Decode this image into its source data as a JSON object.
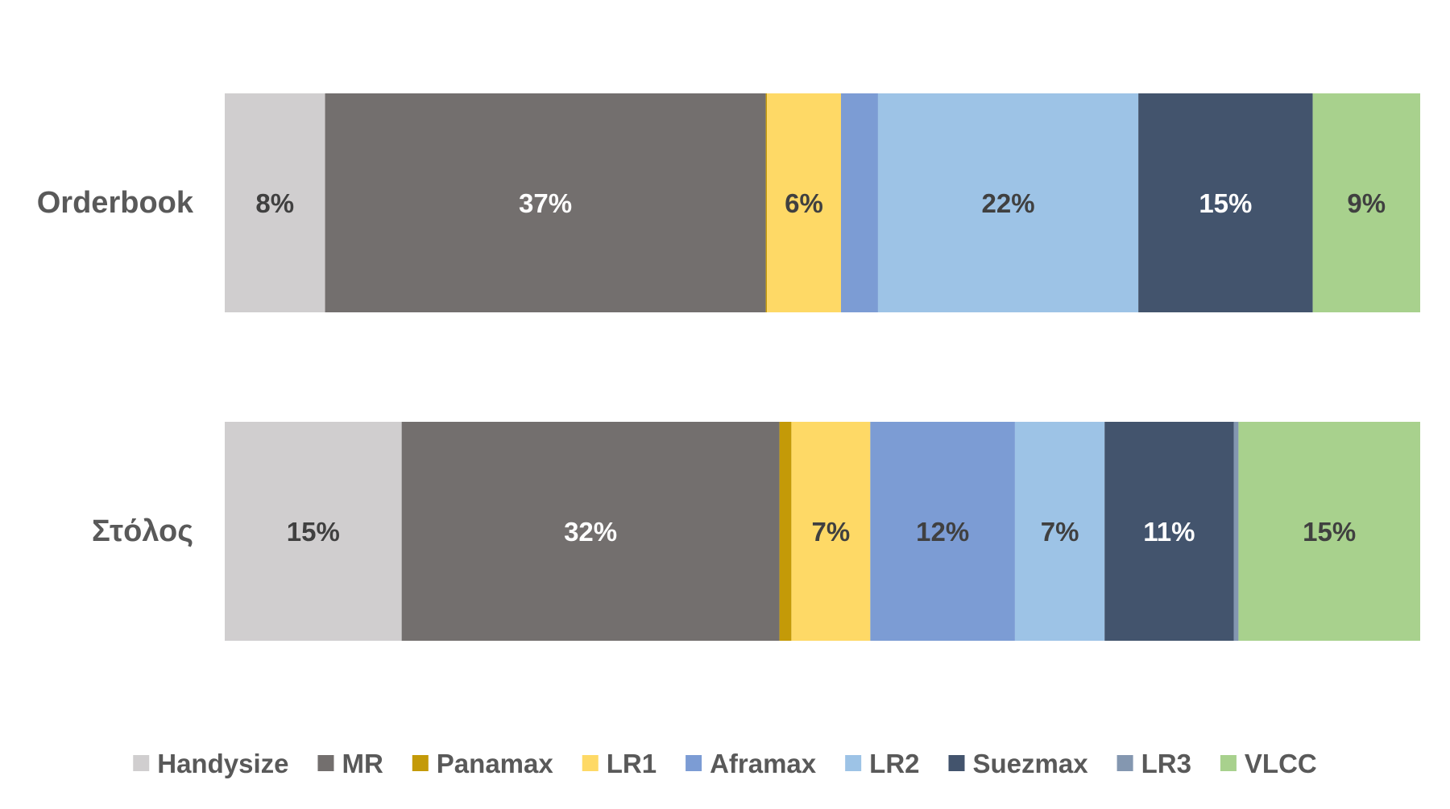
{
  "chart_data": {
    "type": "bar",
    "orientation": "horizontal",
    "stacked": "percent",
    "title": "",
    "xlabel": "",
    "ylabel": "",
    "categories": [
      "Orderbook",
      "Στόλος"
    ],
    "legend_position": "bottom",
    "grid": false,
    "series": [
      {
        "name": "Handysize",
        "color": "#D0CECF",
        "values": [
          8.4,
          14.8
        ],
        "labels": [
          "8%",
          "15%"
        ],
        "label_color": "#404040"
      },
      {
        "name": "MR",
        "color": "#736F6E",
        "values": [
          36.9,
          31.6
        ],
        "labels": [
          "37%",
          "32%"
        ],
        "label_color": "#FFFFFF"
      },
      {
        "name": "Panamax",
        "color": "#C49A08",
        "values": [
          0.1,
          1.0
        ],
        "labels": [
          "",
          ""
        ],
        "label_color": "#404040"
      },
      {
        "name": "LR1",
        "color": "#FED966",
        "values": [
          6.2,
          6.6
        ],
        "labels": [
          "6%",
          "7%"
        ],
        "label_color": "#404040"
      },
      {
        "name": "Aframax",
        "color": "#7C9CD4",
        "values": [
          3.1,
          12.1
        ],
        "labels": [
          "",
          "12%"
        ],
        "label_color": "#404040"
      },
      {
        "name": "LR2",
        "color": "#9DC3E6",
        "values": [
          21.8,
          7.5
        ],
        "labels": [
          "22%",
          "7%"
        ],
        "label_color": "#404040"
      },
      {
        "name": "Suezmax",
        "color": "#43546D",
        "values": [
          14.6,
          10.8
        ],
        "labels": [
          "15%",
          "11%"
        ],
        "label_color": "#FFFFFF"
      },
      {
        "name": "LR3",
        "color": "#8497B0",
        "values": [
          0.0,
          0.4
        ],
        "labels": [
          "",
          ""
        ],
        "label_color": "#404040"
      },
      {
        "name": "VLCC",
        "color": "#A8D18D",
        "values": [
          9.0,
          15.2
        ],
        "labels": [
          "9%",
          "15%"
        ],
        "label_color": "#404040"
      }
    ]
  }
}
